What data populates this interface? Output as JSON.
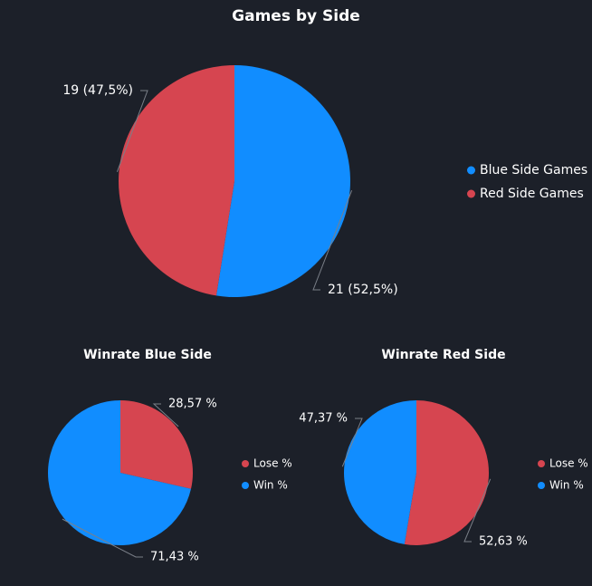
{
  "colors": {
    "background": "#1c2029",
    "blue": "#118dff",
    "red": "#d64550",
    "text": "#ffffff",
    "leader": "#7a7f88"
  },
  "chart_data": [
    {
      "type": "pie",
      "title": "Games by Side",
      "slices": [
        {
          "name": "Blue Side Games",
          "value": 21,
          "percent": 52.5,
          "label": "21 (52,5%)",
          "color": "#118dff"
        },
        {
          "name": "Red Side Games",
          "value": 19,
          "percent": 47.5,
          "label": "19 (47,5%)",
          "color": "#d64550"
        }
      ],
      "legend": [
        "Blue Side Games",
        "Red Side Games"
      ],
      "legend_placement": "right"
    },
    {
      "type": "pie",
      "title": "Winrate Blue Side",
      "slices": [
        {
          "name": "Lose %",
          "value": 28.57,
          "label": "28,57 %",
          "color": "#d64550"
        },
        {
          "name": "Win %",
          "value": 71.43,
          "label": "71,43 %",
          "color": "#118dff"
        }
      ],
      "legend": [
        "Lose %",
        "Win %"
      ],
      "legend_placement": "right"
    },
    {
      "type": "pie",
      "title": "Winrate Red Side",
      "slices": [
        {
          "name": "Lose %",
          "value": 52.63,
          "label": "52,63 %",
          "color": "#d64550"
        },
        {
          "name": "Win %",
          "value": 47.37,
          "label": "47,37 %",
          "color": "#118dff"
        }
      ],
      "legend": [
        "Lose %",
        "Win %"
      ],
      "legend_placement": "right"
    }
  ]
}
